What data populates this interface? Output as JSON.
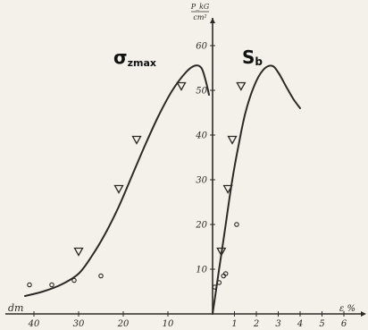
{
  "chart_data": {
    "type": "scatter",
    "title": "",
    "y_axis": {
      "label_top": "P_kG",
      "label_bottom": "cm²",
      "ticks": [
        10,
        20,
        30,
        40,
        50,
        60
      ],
      "tick_labels": [
        "10",
        "20",
        "30",
        "40",
        "50",
        "60"
      ],
      "range": [
        0,
        63
      ]
    },
    "x_axis_left": {
      "label": "dm",
      "ticks": [
        10,
        20,
        30,
        40
      ],
      "tick_labels": [
        "10",
        "20",
        "30",
        "40"
      ],
      "range": [
        0,
        43
      ],
      "direction": "increasing-leftward"
    },
    "x_axis_right": {
      "label": "ε %",
      "ticks": [
        1,
        2,
        3,
        4,
        5,
        6
      ],
      "tick_labels": [
        "1",
        "2",
        "3",
        "4",
        "5",
        "6"
      ],
      "range": [
        0,
        6.7
      ]
    },
    "series": [
      {
        "name": "σzmax",
        "side": "left",
        "curve": [
          [
            42,
            4
          ],
          [
            38,
            5
          ],
          [
            34,
            6.5
          ],
          [
            30,
            9
          ],
          [
            27,
            13
          ],
          [
            24,
            18
          ],
          [
            21,
            24
          ],
          [
            18,
            31
          ],
          [
            15,
            38
          ],
          [
            12,
            44.5
          ],
          [
            9,
            50
          ],
          [
            6,
            54
          ],
          [
            4,
            55.5
          ],
          [
            2.5,
            55
          ],
          [
            1.5,
            52
          ],
          [
            0.8,
            49
          ]
        ],
        "triangles": [
          [
            30,
            14
          ],
          [
            21,
            28
          ],
          [
            17,
            39
          ],
          [
            7,
            51
          ]
        ],
        "circles": [
          [
            41,
            6.5
          ],
          [
            36,
            6.5
          ],
          [
            31,
            7.5
          ],
          [
            25,
            8.5
          ]
        ]
      },
      {
        "name": "Sb",
        "side": "right",
        "curve": [
          [
            0,
            0
          ],
          [
            0.3,
            10
          ],
          [
            0.6,
            20
          ],
          [
            0.9,
            30
          ],
          [
            1.2,
            38
          ],
          [
            1.5,
            45
          ],
          [
            1.9,
            51
          ],
          [
            2.3,
            54.5
          ],
          [
            2.7,
            55.5
          ],
          [
            3.0,
            54
          ],
          [
            3.4,
            50.5
          ],
          [
            3.7,
            48
          ],
          [
            4.0,
            46
          ]
        ],
        "triangles": [
          [
            0.4,
            14
          ],
          [
            0.7,
            28
          ],
          [
            0.9,
            39
          ],
          [
            1.3,
            51
          ]
        ],
        "circles": [
          [
            0.1,
            6
          ],
          [
            0.3,
            7
          ],
          [
            0.5,
            8.5
          ],
          [
            0.6,
            9
          ],
          [
            1.1,
            20
          ]
        ]
      }
    ],
    "series_labels": {
      "left_main": "σ",
      "left_sub": "zmax",
      "right_main": "S",
      "right_sub": "b"
    }
  }
}
